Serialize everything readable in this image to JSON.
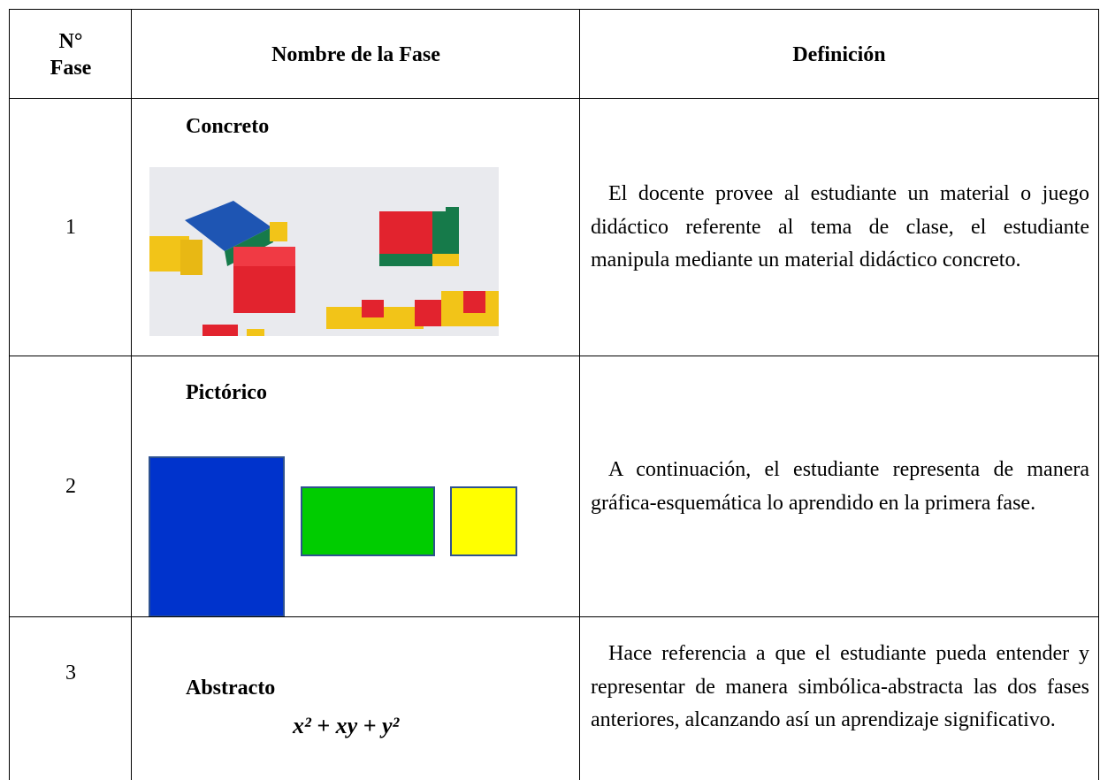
{
  "table": {
    "header": [
      [
        "N°",
        "Fase"
      ],
      [
        "Nombre de la Fase"
      ],
      [
        "Definición"
      ]
    ],
    "rows": [
      {
        "number": "1",
        "name": "Concreto",
        "definition": "El docente provee al estudiante un material o juego didáctico referente al tema de clase, el estudiante manipula mediante un material didáctico concreto."
      },
      {
        "number": "2",
        "name": "Pictórico",
        "definition": "A continuación, el estudiante representa de manera gráfica-esquemática lo aprendido en la primera fase."
      },
      {
        "number": "3",
        "name": "Abstracto",
        "formula": "x² + xy + y²",
        "definition": "Hace referencia a que el estudiante pueda entender y representar de manera simbólica-abstracta las dos fases anteriores, alcanzando así un aprendizaje significativo."
      }
    ]
  }
}
